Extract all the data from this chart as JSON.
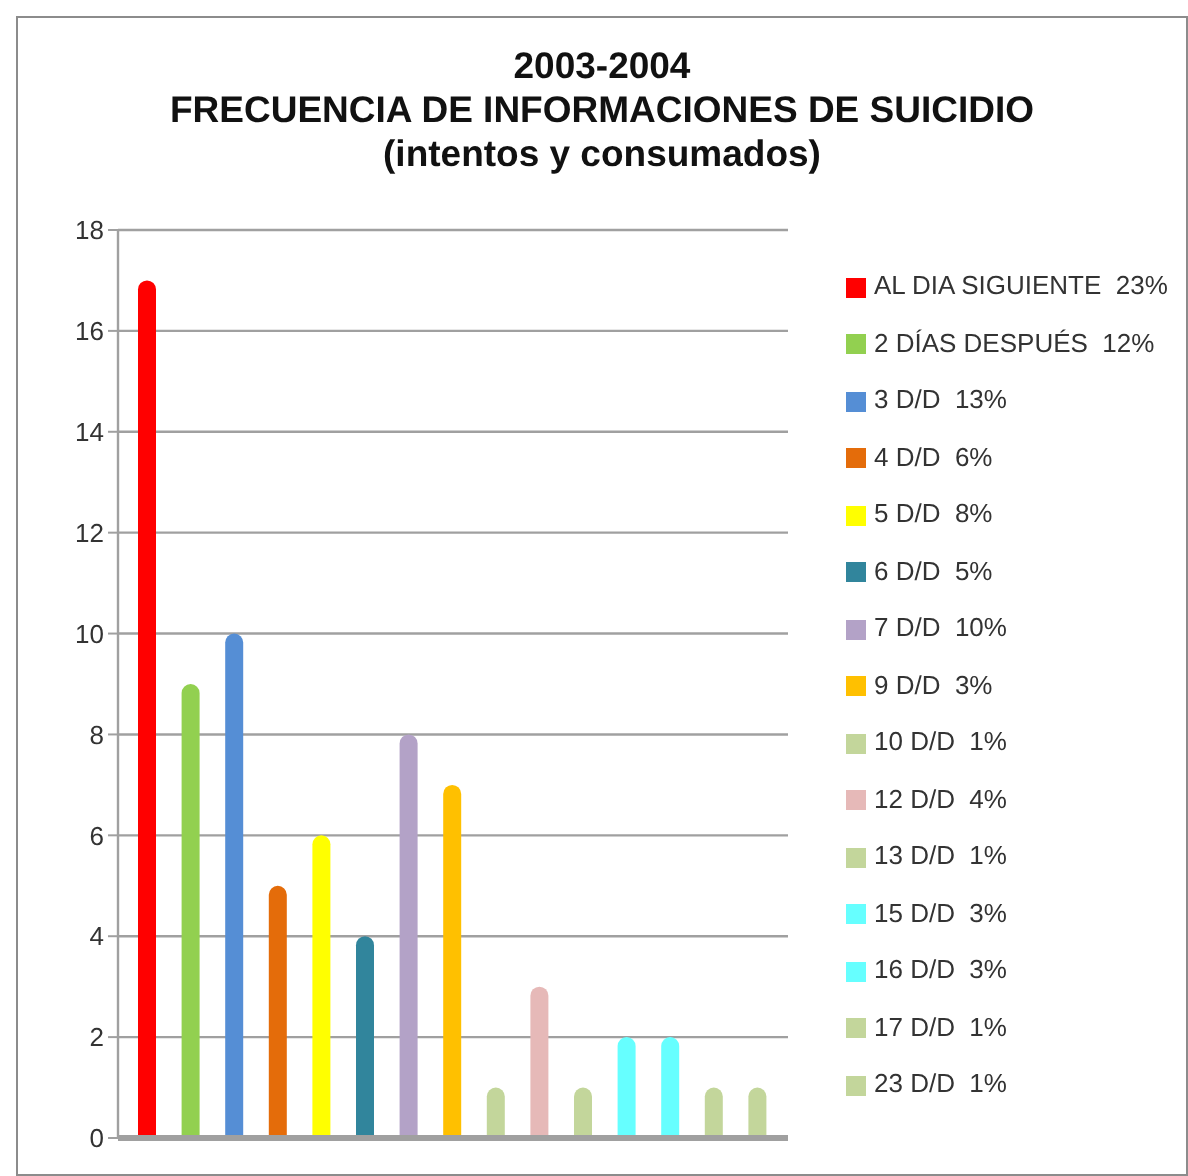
{
  "chart_data": {
    "type": "bar",
    "title": "2003-2004\nFRECUENCIA DE INFORMACIONES DE SUICIDIO\n(intentos y consumados)",
    "categories": [
      null
    ],
    "series": [
      {
        "name": "AL DIA SIGUIENTE  23%",
        "color": "#ff0000",
        "values": [
          17
        ]
      },
      {
        "name": "2 DÍAS DESPUÉS  12%",
        "color": "#92d050",
        "values": [
          9
        ]
      },
      {
        "name": "3 D/D  13%",
        "color": "#558ed5",
        "values": [
          10
        ]
      },
      {
        "name": "4 D/D  6%",
        "color": "#e46c0a",
        "values": [
          5
        ]
      },
      {
        "name": "5 D/D  8%",
        "color": "#ffff00",
        "values": [
          6
        ]
      },
      {
        "name": "6 D/D  5%",
        "color": "#31859c",
        "values": [
          4
        ]
      },
      {
        "name": "7 D/D  10%",
        "color": "#b3a2c7",
        "values": [
          8
        ]
      },
      {
        "name": "9 D/D  3%",
        "color": "#ffc000",
        "values": [
          7
        ]
      },
      {
        "name": "10 D/D  1%",
        "color": "#c3d69b",
        "values": [
          1
        ]
      },
      {
        "name": "12 D/D  4%",
        "color": "#e6b9b8",
        "values": [
          3
        ]
      },
      {
        "name": "13 D/D  1%",
        "color": "#c3d69b",
        "values": [
          1
        ]
      },
      {
        "name": "15 D/D  3%",
        "color": "#66ffff",
        "values": [
          2
        ]
      },
      {
        "name": "16 D/D  3%",
        "color": "#66ffff",
        "values": [
          2
        ]
      },
      {
        "name": "17 D/D  1%",
        "color": "#c3d69b",
        "values": [
          1
        ]
      },
      {
        "name": "23 D/D  1%",
        "color": "#c3d69b",
        "values": [
          1
        ]
      }
    ],
    "ylim": [
      0,
      18
    ],
    "yticks": [
      0,
      2,
      4,
      6,
      8,
      10,
      12,
      14,
      16,
      18
    ],
    "grid": "y",
    "legend": "right",
    "tick_labels": "y"
  }
}
